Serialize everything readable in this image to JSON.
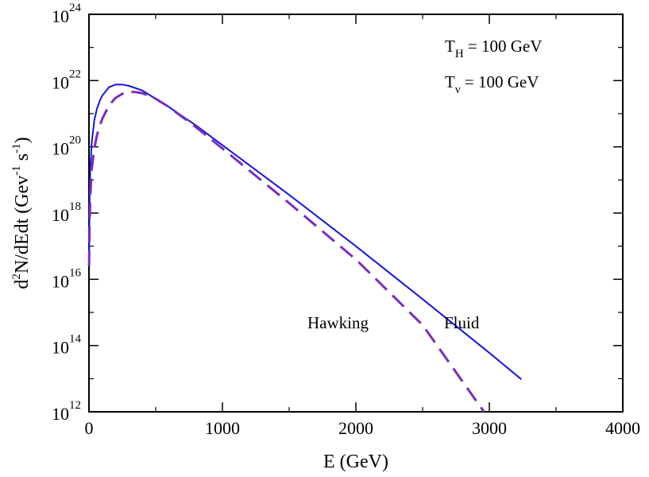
{
  "chart_data": {
    "type": "line",
    "title": "",
    "xlabel": "E (GeV)",
    "ylabel": {
      "base": "d",
      "exp": "2",
      "rest": "N/dEdt (Gev",
      "exp1": "-1",
      "mid": " s",
      "exp2": "-1",
      "end": ")"
    },
    "xlim": [
      0,
      4000
    ],
    "ylim_log10": [
      12,
      24
    ],
    "y_scale": "log",
    "x_ticks": [
      "0",
      "1000",
      "2000",
      "3000",
      "4000"
    ],
    "x_tick_values": [
      0,
      1000,
      2000,
      3000,
      4000
    ],
    "y_tick_base": "10",
    "y_tick_exponents": [
      "12",
      "14",
      "16",
      "18",
      "20",
      "22",
      "24"
    ],
    "annotations": [
      {
        "main": "T",
        "sub": "H",
        "rest": " = 100 GeV"
      },
      {
        "main": "T",
        "sub": "ν",
        "rest": " = 100 GeV"
      }
    ],
    "series": [
      {
        "name": "Fluid",
        "style": "solid",
        "color": "#1515e0",
        "x": [
          0.8,
          5,
          10,
          20,
          40,
          60,
          80,
          100,
          150,
          200,
          250,
          300,
          400,
          500,
          600,
          800,
          1000,
          1500,
          2000,
          2500,
          3000,
          3240
        ],
        "log10y": [
          16.6,
          18.5,
          19.3,
          20.1,
          20.8,
          21.15,
          21.38,
          21.55,
          21.8,
          21.88,
          21.88,
          21.84,
          21.7,
          21.45,
          21.2,
          20.65,
          20.05,
          18.55,
          17.0,
          15.4,
          13.78,
          12.98
        ]
      },
      {
        "name": "Hawking",
        "style": "dashed",
        "color": "#7b2cbf",
        "x": [
          0.8,
          5,
          10,
          20,
          40,
          60,
          80,
          100,
          150,
          200,
          250,
          300,
          350,
          400,
          500,
          600,
          800,
          1000,
          1500,
          2000,
          2500,
          2960
        ],
        "log10y": [
          16.4,
          17.8,
          18.5,
          19.3,
          19.95,
          20.35,
          20.62,
          20.85,
          21.25,
          21.48,
          21.6,
          21.66,
          21.65,
          21.62,
          21.45,
          21.2,
          20.6,
          19.95,
          18.3,
          16.6,
          14.62,
          12.0
        ]
      }
    ],
    "curve_labels": [
      {
        "text": "Hawking",
        "series": "Hawking"
      },
      {
        "text": "Fluid",
        "series": "Fluid"
      }
    ]
  }
}
